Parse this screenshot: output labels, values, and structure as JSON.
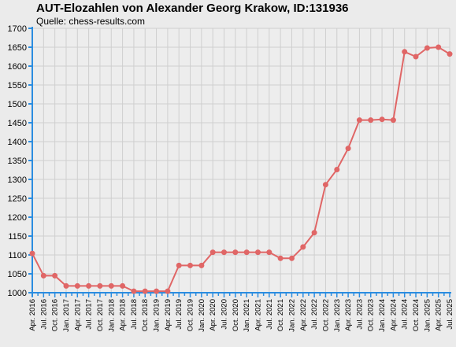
{
  "chart_data": {
    "type": "line",
    "title": "AUT-Elozahlen von Alexander Georg Krakow, ID:131936",
    "subtitle": "Quelle: chess-results.com",
    "xlabel": "",
    "ylabel": "",
    "ylim": [
      1000,
      1700
    ],
    "y_ticks": [
      1000,
      1050,
      1100,
      1150,
      1200,
      1250,
      1300,
      1350,
      1400,
      1450,
      1500,
      1550,
      1600,
      1650,
      1700
    ],
    "grid": true,
    "line_color": "#e06666",
    "categories": [
      "Apr. 2016",
      "",
      "Jul. 2016",
      "",
      "Oct. 2016",
      "",
      "Jan. 2017",
      "",
      "Apr. 2017",
      "",
      "Jul. 2017",
      "",
      "Oct. 2017",
      "",
      "Jan. 2018",
      "",
      "Apr. 2018",
      "",
      "Jul. 2018",
      "",
      "Oct. 2018",
      "",
      "Jan. 2019",
      "",
      "Apr. 2019",
      "",
      "Jul. 2019",
      "",
      "Oct. 2019",
      "",
      "Jan. 2020",
      "",
      "Apr. 2020",
      "",
      "Jul. 2020",
      "",
      "Oct. 2020",
      "",
      "Jan. 2021",
      "",
      "Apr. 2021",
      "",
      "Jul. 2021",
      "",
      "Oct. 2021",
      "",
      "Jan. 2022",
      "",
      "Apr. 2022",
      "",
      "Jul. 2022",
      "",
      "Oct. 2022",
      "",
      "Jan. 2023",
      "",
      "Apr. 2023",
      "",
      "Jul. 2023",
      "",
      "Oct. 2023",
      "",
      "Jan. 2024",
      "",
      "Apr. 2024",
      "",
      "Jul. 2024",
      "",
      "Oct. 2024",
      "",
      "Jan. 2025",
      "",
      "Apr. 2025",
      "",
      "Jul. 2025"
    ],
    "series": [
      {
        "values": [
          1104,
          null,
          1045,
          null,
          1045,
          null,
          1018,
          null,
          1018,
          null,
          1018,
          null,
          1018,
          null,
          1018,
          null,
          1018,
          null,
          1004,
          null,
          1004,
          null,
          1004,
          null,
          1004,
          null,
          1072,
          null,
          1072,
          null,
          1072,
          null,
          1107,
          null,
          1107,
          null,
          1107,
          null,
          1107,
          null,
          1107,
          null,
          1107,
          null,
          1091,
          null,
          1091,
          null,
          1121,
          null,
          1159,
          null,
          1286,
          null,
          1326,
          null,
          1382,
          null,
          1457,
          null,
          1457,
          null,
          1459,
          null,
          1457,
          null,
          1638,
          null,
          1625,
          null,
          1648,
          null,
          1650,
          null,
          1632
        ]
      }
    ]
  }
}
